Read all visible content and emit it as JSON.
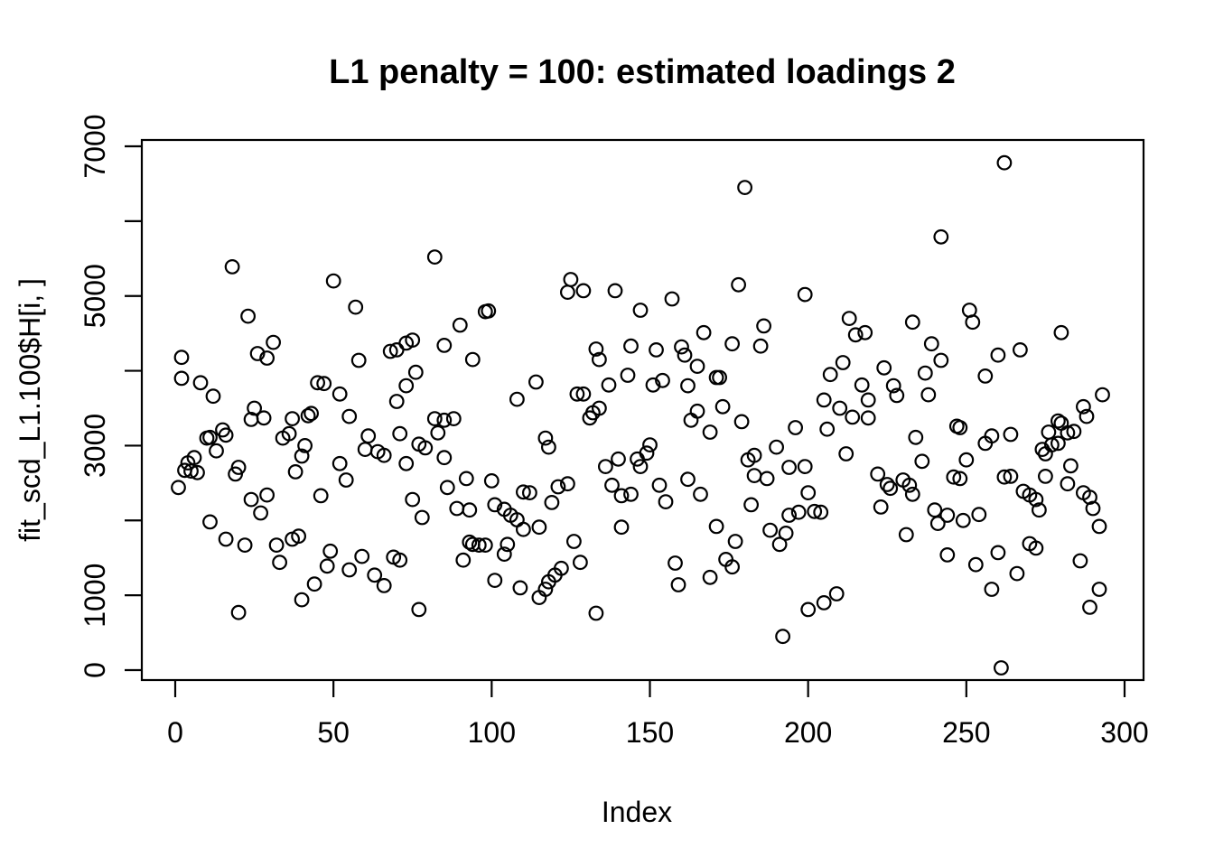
{
  "chart_data": {
    "type": "scatter",
    "title": "L1 penalty = 100: estimated loadings 2",
    "xlabel": "Index",
    "ylabel": "fit_scd_L1.100$H[i, ]",
    "legend": "none",
    "grid": false,
    "marker": "open-circle",
    "colors": {
      "background": "#ffffff",
      "marker_stroke": "#000000",
      "axis": "#000000",
      "text": "#000000"
    },
    "xlim": [
      0,
      300
    ],
    "ylim": [
      0,
      7000
    ],
    "x_ticks": [
      0,
      50,
      100,
      150,
      200,
      250,
      300
    ],
    "x_tick_labels": [
      "0",
      "50",
      "100",
      "150",
      "200",
      "250",
      "300"
    ],
    "y_ticks": [
      0,
      1000,
      2000,
      3000,
      4000,
      5000,
      6000,
      7000
    ],
    "y_tick_labels": [
      "0",
      "1000",
      "",
      "3000",
      "",
      "5000",
      "",
      "7000"
    ],
    "points": [
      [
        1,
        2440
      ],
      [
        2,
        4180
      ],
      [
        2,
        3900
      ],
      [
        3,
        2670
      ],
      [
        4,
        2770
      ],
      [
        5,
        2660
      ],
      [
        6,
        2840
      ],
      [
        7,
        2640
      ],
      [
        8,
        3840
      ],
      [
        10,
        3100
      ],
      [
        11,
        3110
      ],
      [
        11,
        1980
      ],
      [
        12,
        3660
      ],
      [
        13,
        2930
      ],
      [
        15,
        3210
      ],
      [
        16,
        3140
      ],
      [
        16,
        1750
      ],
      [
        18,
        5390
      ],
      [
        19,
        2620
      ],
      [
        20,
        2710
      ],
      [
        20,
        770
      ],
      [
        22,
        1670
      ],
      [
        23,
        4730
      ],
      [
        24,
        3350
      ],
      [
        24,
        2280
      ],
      [
        25,
        3500
      ],
      [
        26,
        4230
      ],
      [
        27,
        2100
      ],
      [
        28,
        3370
      ],
      [
        29,
        4170
      ],
      [
        29,
        2340
      ],
      [
        31,
        4380
      ],
      [
        32,
        1670
      ],
      [
        33,
        1440
      ],
      [
        34,
        3100
      ],
      [
        36,
        3160
      ],
      [
        37,
        3360
      ],
      [
        37,
        1750
      ],
      [
        38,
        2650
      ],
      [
        39,
        1790
      ],
      [
        40,
        2860
      ],
      [
        40,
        940
      ],
      [
        41,
        3000
      ],
      [
        42,
        3400
      ],
      [
        43,
        3430
      ],
      [
        44,
        1150
      ],
      [
        45,
        3840
      ],
      [
        46,
        2330
      ],
      [
        47,
        3830
      ],
      [
        48,
        1390
      ],
      [
        49,
        1590
      ],
      [
        50,
        5200
      ],
      [
        52,
        3690
      ],
      [
        52,
        2760
      ],
      [
        54,
        2540
      ],
      [
        55,
        3390
      ],
      [
        55,
        1340
      ],
      [
        57,
        4850
      ],
      [
        58,
        4140
      ],
      [
        59,
        1520
      ],
      [
        60,
        2950
      ],
      [
        61,
        3130
      ],
      [
        63,
        1270
      ],
      [
        64,
        2920
      ],
      [
        66,
        2870
      ],
      [
        66,
        1130
      ],
      [
        68,
        4260
      ],
      [
        69,
        1510
      ],
      [
        70,
        4280
      ],
      [
        70,
        3590
      ],
      [
        71,
        3160
      ],
      [
        71,
        1470
      ],
      [
        73,
        4370
      ],
      [
        73,
        3800
      ],
      [
        73,
        2760
      ],
      [
        75,
        4410
      ],
      [
        75,
        2280
      ],
      [
        76,
        3980
      ],
      [
        77,
        3020
      ],
      [
        77,
        810
      ],
      [
        78,
        2040
      ],
      [
        79,
        2970
      ],
      [
        82,
        5520
      ],
      [
        82,
        3360
      ],
      [
        83,
        3170
      ],
      [
        85,
        4340
      ],
      [
        85,
        3340
      ],
      [
        85,
        2840
      ],
      [
        86,
        2440
      ],
      [
        88,
        3360
      ],
      [
        89,
        2160
      ],
      [
        90,
        4610
      ],
      [
        91,
        1470
      ],
      [
        92,
        2560
      ],
      [
        93,
        2140
      ],
      [
        93,
        1710
      ],
      [
        94,
        4150
      ],
      [
        94,
        1680
      ],
      [
        96,
        1670
      ],
      [
        98,
        4790
      ],
      [
        98,
        1670
      ],
      [
        99,
        4800
      ],
      [
        100,
        2530
      ],
      [
        101,
        2210
      ],
      [
        101,
        1200
      ],
      [
        104,
        2150
      ],
      [
        104,
        1550
      ],
      [
        105,
        1680
      ],
      [
        106,
        2070
      ],
      [
        108,
        3620
      ],
      [
        108,
        2010
      ],
      [
        109,
        1100
      ],
      [
        110,
        2380
      ],
      [
        110,
        1880
      ],
      [
        112,
        2370
      ],
      [
        114,
        3850
      ],
      [
        115,
        1910
      ],
      [
        115,
        970
      ],
      [
        117,
        3100
      ],
      [
        117,
        1080
      ],
      [
        118,
        2980
      ],
      [
        118,
        1180
      ],
      [
        119,
        2240
      ],
      [
        120,
        1270
      ],
      [
        121,
        2450
      ],
      [
        122,
        1360
      ],
      [
        124,
        5050
      ],
      [
        124,
        2490
      ],
      [
        125,
        5220
      ],
      [
        126,
        1720
      ],
      [
        127,
        3690
      ],
      [
        128,
        1440
      ],
      [
        129,
        5070
      ],
      [
        129,
        3690
      ],
      [
        131,
        3370
      ],
      [
        132,
        3440
      ],
      [
        133,
        4290
      ],
      [
        133,
        760
      ],
      [
        134,
        4150
      ],
      [
        134,
        3500
      ],
      [
        136,
        2720
      ],
      [
        137,
        3810
      ],
      [
        138,
        2470
      ],
      [
        139,
        5070
      ],
      [
        140,
        2820
      ],
      [
        141,
        2330
      ],
      [
        141,
        1910
      ],
      [
        143,
        3940
      ],
      [
        144,
        4330
      ],
      [
        144,
        2350
      ],
      [
        146,
        2820
      ],
      [
        147,
        4810
      ],
      [
        147,
        2720
      ],
      [
        149,
        2900
      ],
      [
        150,
        3010
      ],
      [
        151,
        3810
      ],
      [
        152,
        4280
      ],
      [
        153,
        2470
      ],
      [
        154,
        3870
      ],
      [
        155,
        2250
      ],
      [
        157,
        4960
      ],
      [
        158,
        1430
      ],
      [
        159,
        1140
      ],
      [
        160,
        4320
      ],
      [
        161,
        4210
      ],
      [
        162,
        3800
      ],
      [
        162,
        2550
      ],
      [
        163,
        3340
      ],
      [
        165,
        4060
      ],
      [
        165,
        3460
      ],
      [
        166,
        2350
      ],
      [
        167,
        4510
      ],
      [
        169,
        3180
      ],
      [
        169,
        1240
      ],
      [
        171,
        3910
      ],
      [
        171,
        1920
      ],
      [
        172,
        3910
      ],
      [
        173,
        3520
      ],
      [
        174,
        1480
      ],
      [
        176,
        4360
      ],
      [
        176,
        1380
      ],
      [
        177,
        1720
      ],
      [
        178,
        5150
      ],
      [
        179,
        3320
      ],
      [
        180,
        6450
      ],
      [
        181,
        2810
      ],
      [
        182,
        2210
      ],
      [
        183,
        2870
      ],
      [
        183,
        2600
      ],
      [
        185,
        4330
      ],
      [
        186,
        4600
      ],
      [
        187,
        2560
      ],
      [
        188,
        1870
      ],
      [
        190,
        2980
      ],
      [
        191,
        1680
      ],
      [
        192,
        450
      ],
      [
        193,
        1830
      ],
      [
        194,
        2710
      ],
      [
        194,
        2070
      ],
      [
        196,
        3240
      ],
      [
        197,
        2110
      ],
      [
        199,
        5020
      ],
      [
        199,
        2720
      ],
      [
        200,
        2370
      ],
      [
        200,
        810
      ],
      [
        202,
        2120
      ],
      [
        204,
        2110
      ],
      [
        205,
        3610
      ],
      [
        205,
        900
      ],
      [
        206,
        3220
      ],
      [
        207,
        3950
      ],
      [
        209,
        1020
      ],
      [
        210,
        3500
      ],
      [
        211,
        4110
      ],
      [
        212,
        2890
      ],
      [
        213,
        4700
      ],
      [
        214,
        3380
      ],
      [
        215,
        4480
      ],
      [
        217,
        3810
      ],
      [
        218,
        4510
      ],
      [
        219,
        3610
      ],
      [
        219,
        3370
      ],
      [
        222,
        2620
      ],
      [
        223,
        2180
      ],
      [
        224,
        4040
      ],
      [
        225,
        2480
      ],
      [
        226,
        2430
      ],
      [
        227,
        3800
      ],
      [
        228,
        3670
      ],
      [
        230,
        2540
      ],
      [
        231,
        1810
      ],
      [
        232,
        2470
      ],
      [
        233,
        4650
      ],
      [
        233,
        2350
      ],
      [
        234,
        3110
      ],
      [
        236,
        2790
      ],
      [
        237,
        3970
      ],
      [
        238,
        3680
      ],
      [
        239,
        4360
      ],
      [
        240,
        2140
      ],
      [
        241,
        1960
      ],
      [
        242,
        5790
      ],
      [
        242,
        4140
      ],
      [
        244,
        2070
      ],
      [
        244,
        1540
      ],
      [
        246,
        2580
      ],
      [
        247,
        3260
      ],
      [
        248,
        3240
      ],
      [
        248,
        2560
      ],
      [
        249,
        2000
      ],
      [
        250,
        2810
      ],
      [
        251,
        4810
      ],
      [
        252,
        4650
      ],
      [
        253,
        1410
      ],
      [
        254,
        2080
      ],
      [
        256,
        3930
      ],
      [
        256,
        3030
      ],
      [
        258,
        3130
      ],
      [
        258,
        1080
      ],
      [
        260,
        4210
      ],
      [
        260,
        1570
      ],
      [
        261,
        30
      ],
      [
        262,
        6780
      ],
      [
        262,
        2580
      ],
      [
        264,
        3150
      ],
      [
        264,
        2590
      ],
      [
        266,
        1290
      ],
      [
        267,
        4280
      ],
      [
        268,
        2390
      ],
      [
        270,
        2340
      ],
      [
        270,
        1690
      ],
      [
        272,
        2280
      ],
      [
        272,
        1630
      ],
      [
        273,
        2140
      ],
      [
        274,
        2950
      ],
      [
        275,
        2890
      ],
      [
        275,
        2590
      ],
      [
        276,
        3180
      ],
      [
        277,
        3010
      ],
      [
        279,
        3330
      ],
      [
        279,
        3030
      ],
      [
        280,
        4510
      ],
      [
        280,
        3300
      ],
      [
        282,
        3170
      ],
      [
        282,
        2490
      ],
      [
        283,
        2730
      ],
      [
        284,
        3190
      ],
      [
        286,
        1460
      ],
      [
        287,
        3520
      ],
      [
        287,
        2370
      ],
      [
        288,
        3390
      ],
      [
        289,
        2310
      ],
      [
        289,
        840
      ],
      [
        290,
        2160
      ],
      [
        292,
        1920
      ],
      [
        292,
        1080
      ],
      [
        293,
        3680
      ]
    ]
  }
}
